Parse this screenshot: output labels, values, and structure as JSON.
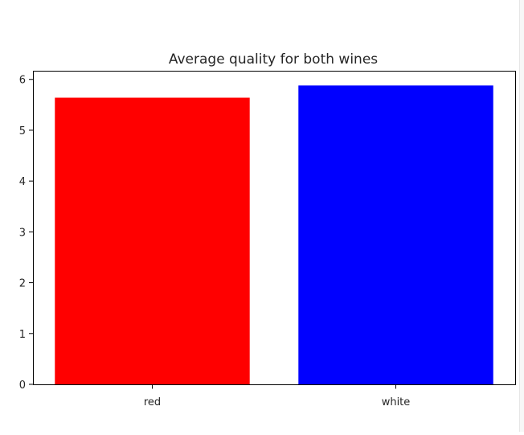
{
  "chart_data": {
    "type": "bar",
    "title": "Average quality for both wines",
    "xlabel": "",
    "ylabel": "",
    "categories": [
      "red",
      "white"
    ],
    "values": [
      5.64,
      5.88
    ],
    "colors": [
      "#ff0000",
      "#0000ff"
    ],
    "ylim": [
      0,
      6.17
    ],
    "yticks": [
      0,
      1,
      2,
      3,
      4,
      5,
      6
    ],
    "grid": false,
    "legend": "none"
  }
}
